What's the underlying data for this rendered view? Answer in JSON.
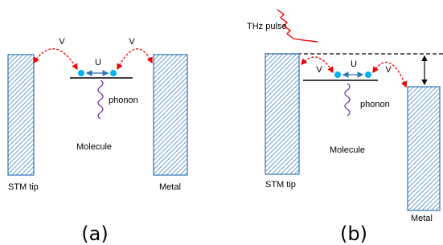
{
  "panels": [
    {
      "tag": "(a)",
      "hop_left": "V",
      "interaction": "U",
      "hop_right": "V",
      "mode": "phonon",
      "molecule": "Molecule",
      "tip": "STM tip",
      "substrate": "Metal"
    },
    {
      "tag": "(b)",
      "pulse": "THz pulse",
      "hop_left": "V",
      "interaction": "U",
      "hop_right": "V",
      "mode": "phonon",
      "molecule": "Molecule",
      "tip": "STM tip",
      "substrate": "Metal"
    }
  ]
}
